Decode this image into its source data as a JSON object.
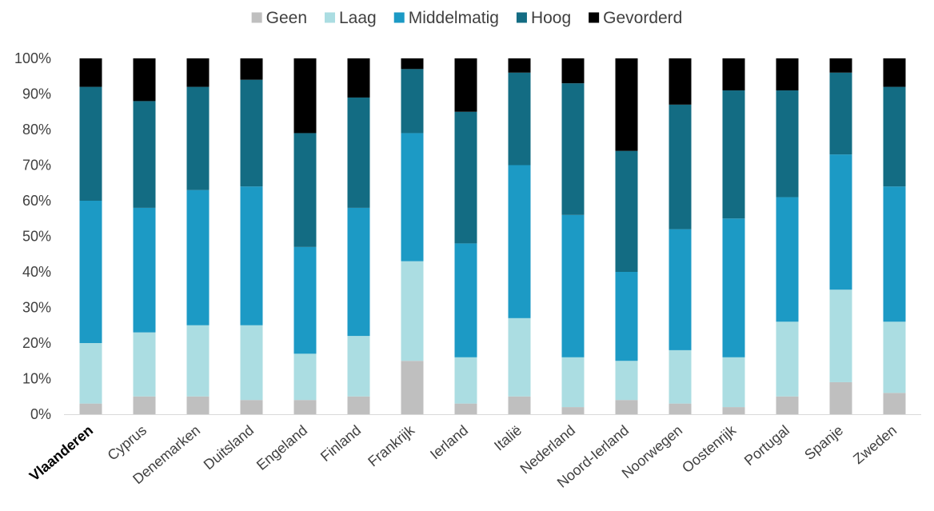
{
  "chart_data": {
    "type": "bar",
    "stacked": true,
    "title": "",
    "xlabel": "",
    "ylabel": "",
    "ylim": [
      0,
      100
    ],
    "yticks": [
      "0%",
      "10%",
      "20%",
      "30%",
      "40%",
      "50%",
      "60%",
      "70%",
      "80%",
      "90%",
      "100%"
    ],
    "legend_position": "top",
    "grid": false,
    "highlight_category": "Vlaanderen",
    "categories": [
      "Vlaanderen",
      "Cyprus",
      "Denemarken",
      "Duitsland",
      "Engeland",
      "Finland",
      "Frankrijk",
      "Ierland",
      "Italië",
      "Nederland",
      "Noord-Ierland",
      "Noorwegen",
      "Oostenrijk",
      "Portugal",
      "Spanje",
      "Zweden"
    ],
    "series": [
      {
        "name": "Geen",
        "color": "#bfbfbf",
        "values": [
          3,
          5,
          5,
          4,
          4,
          5,
          15,
          3,
          5,
          2,
          4,
          3,
          2,
          5,
          9,
          6
        ]
      },
      {
        "name": "Laag",
        "color": "#abdde2",
        "values": [
          17,
          18,
          20,
          21,
          13,
          17,
          28,
          13,
          22,
          14,
          11,
          15,
          14,
          21,
          26,
          20
        ]
      },
      {
        "name": "Middelmatig",
        "color": "#1c9ac5",
        "values": [
          40,
          35,
          38,
          39,
          30,
          36,
          36,
          32,
          43,
          40,
          25,
          34,
          39,
          35,
          38,
          38
        ]
      },
      {
        "name": "Hoog",
        "color": "#136c83",
        "values": [
          32,
          30,
          29,
          30,
          32,
          31,
          18,
          37,
          26,
          37,
          34,
          35,
          36,
          30,
          23,
          28
        ]
      },
      {
        "name": "Gevorderd",
        "color": "#000000",
        "values": [
          8,
          12,
          8,
          6,
          21,
          11,
          3,
          15,
          4,
          7,
          26,
          13,
          9,
          9,
          4,
          8
        ]
      }
    ]
  }
}
